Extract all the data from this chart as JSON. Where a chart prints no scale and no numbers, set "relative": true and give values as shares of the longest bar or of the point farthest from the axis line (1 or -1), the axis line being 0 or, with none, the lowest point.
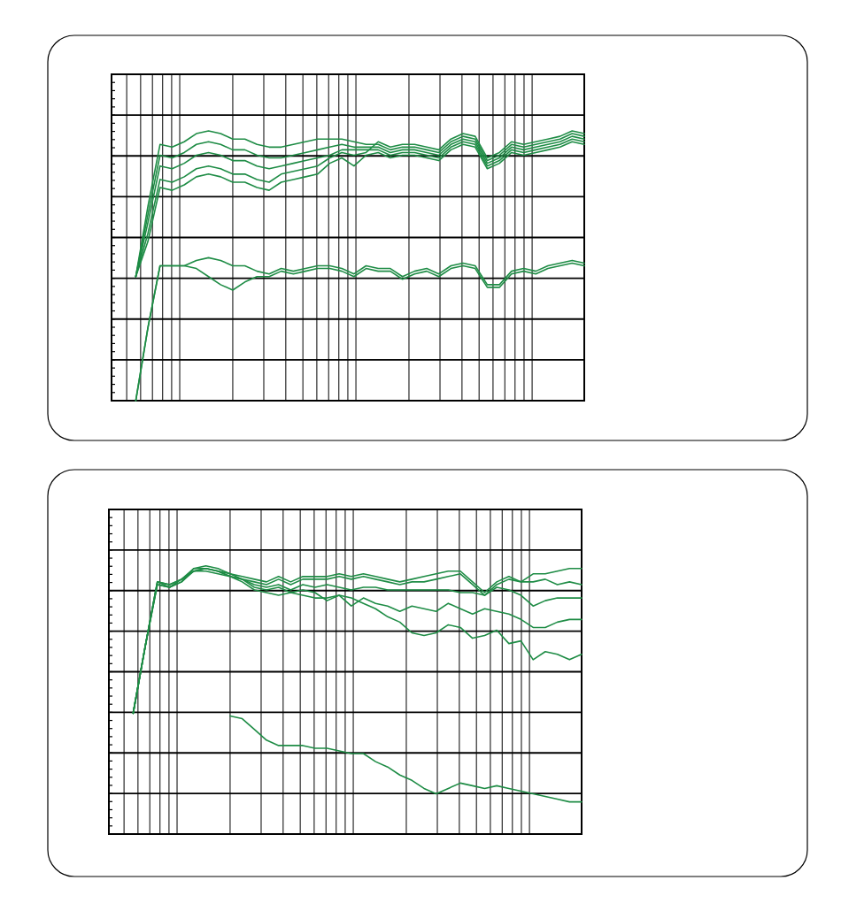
{
  "chart_data": [
    {
      "type": "line",
      "relative": true,
      "grid": true,
      "categories": [
        null,
        null,
        null,
        null,
        null,
        null,
        null,
        null,
        null,
        null,
        null,
        null,
        null,
        null,
        null,
        null,
        null,
        null,
        null,
        null,
        null,
        null,
        null,
        null,
        null,
        null,
        null,
        null,
        null,
        null,
        null,
        null,
        null,
        null,
        null,
        null,
        null,
        null,
        null,
        null
      ],
      "series": [
        {
          "color": "#1e8c45",
          "values": [
            null,
            null,
            0.46,
            0.72,
            0.95,
            0.94,
            0.96,
            0.99,
            1,
            0.99,
            0.97,
            0.97,
            0.95,
            0.94,
            0.94,
            0.95,
            0.96,
            0.97,
            0.97,
            0.97,
            0.96,
            0.95,
            0.95,
            0.93,
            0.94,
            0.94,
            0.93,
            0.92,
            0.96,
            0.98,
            0.97,
            0.89,
            0.91,
            0.95,
            0.94,
            0.95,
            0.96,
            0.97,
            0.99,
            0.98
          ]
        },
        {
          "color": "#1e8c45",
          "values": [
            null,
            null,
            0.46,
            0.69,
            0.91,
            0.9,
            0.92,
            0.95,
            0.96,
            0.95,
            0.93,
            0.93,
            0.91,
            0.9,
            0.9,
            0.91,
            0.92,
            0.93,
            0.94,
            0.95,
            0.94,
            0.94,
            0.94,
            0.92,
            0.93,
            0.93,
            0.92,
            0.91,
            0.95,
            0.97,
            0.96,
            0.88,
            0.9,
            0.94,
            0.93,
            0.94,
            0.95,
            0.96,
            0.98,
            0.97
          ]
        },
        {
          "color": "#1e8c45",
          "values": [
            null,
            null,
            0.46,
            0.66,
            0.87,
            0.86,
            0.88,
            0.91,
            0.92,
            0.91,
            0.89,
            0.89,
            0.87,
            0.86,
            0.87,
            0.88,
            0.89,
            0.9,
            0.91,
            0.93,
            0.93,
            0.93,
            0.93,
            0.91,
            0.92,
            0.92,
            0.91,
            0.9,
            0.94,
            0.96,
            0.95,
            0.87,
            0.89,
            0.93,
            0.92,
            0.93,
            0.94,
            0.95,
            0.97,
            0.96
          ]
        },
        {
          "color": "#1e8c45",
          "values": [
            null,
            null,
            0.46,
            0.62,
            0.82,
            0.81,
            0.83,
            0.86,
            0.87,
            0.86,
            0.84,
            0.84,
            0.82,
            0.81,
            0.84,
            0.85,
            0.86,
            0.87,
            0.9,
            0.92,
            0.91,
            0.92,
            0.96,
            0.94,
            0.95,
            0.95,
            0.94,
            0.93,
            0.97,
            0.99,
            0.98,
            0.9,
            0.92,
            0.96,
            0.95,
            0.96,
            0.97,
            0.98,
            1,
            0.99
          ]
        },
        {
          "color": "#1e8c45",
          "values": [
            null,
            null,
            0.46,
            0.59,
            0.79,
            0.78,
            0.8,
            0.83,
            0.84,
            0.83,
            0.81,
            0.81,
            0.79,
            0.78,
            0.81,
            0.82,
            0.83,
            0.84,
            0.88,
            0.9,
            0.87,
            0.91,
            0.92,
            0.9,
            0.91,
            0.91,
            0.9,
            0.89,
            0.93,
            0.95,
            0.94,
            0.86,
            0.88,
            0.92,
            0.91,
            0.92,
            0.93,
            0.94,
            0.96,
            0.95
          ]
        },
        {
          "color": "#1e8c45",
          "values": [
            null,
            null,
            0,
            0.27,
            0.5,
            0.5,
            0.5,
            0.52,
            0.53,
            0.52,
            0.5,
            0.5,
            0.48,
            0.47,
            0.49,
            0.48,
            0.49,
            0.5,
            0.5,
            0.49,
            0.47,
            0.5,
            0.49,
            0.49,
            0.46,
            0.48,
            0.49,
            0.47,
            0.5,
            0.51,
            0.5,
            0.43,
            0.43,
            0.48,
            0.49,
            0.48,
            0.5,
            0.51,
            0.52,
            0.51
          ]
        },
        {
          "color": "#1e8c45",
          "values": [
            null,
            null,
            0,
            0.27,
            0.5,
            0.5,
            0.5,
            0.49,
            0.46,
            0.43,
            0.41,
            0.44,
            0.46,
            0.46,
            0.48,
            0.47,
            0.48,
            0.49,
            0.49,
            0.48,
            0.46,
            0.49,
            0.48,
            0.48,
            0.45,
            0.47,
            0.48,
            0.46,
            0.49,
            0.5,
            0.49,
            0.42,
            0.42,
            0.47,
            0.48,
            0.47,
            0.49,
            0.5,
            0.51,
            0.5
          ]
        }
      ]
    },
    {
      "type": "line",
      "relative": true,
      "grid": true,
      "categories": [
        null,
        null,
        null,
        null,
        null,
        null,
        null,
        null,
        null,
        null,
        null,
        null,
        null,
        null,
        null,
        null,
        null,
        null,
        null,
        null,
        null,
        null,
        null,
        null,
        null,
        null,
        null,
        null,
        null,
        null,
        null,
        null,
        null,
        null,
        null,
        null,
        null,
        null,
        null,
        null
      ],
      "series": [
        {
          "color": "#1e8c45",
          "values": [
            null,
            null,
            0.45,
            0.7,
            0.94,
            0.93,
            0.95,
            0.99,
            1,
            0.99,
            0.97,
            0.96,
            0.95,
            0.94,
            0.96,
            0.94,
            0.96,
            0.96,
            0.96,
            0.97,
            0.96,
            0.97,
            0.96,
            0.95,
            0.94,
            0.95,
            0.96,
            0.97,
            0.98,
            0.98,
            0.94,
            0.9,
            0.94,
            0.96,
            0.94,
            0.97,
            0.97,
            0.98,
            0.99,
            0.99
          ]
        },
        {
          "color": "#1e8c45",
          "values": [
            null,
            null,
            0.45,
            0.7,
            0.94,
            0.92,
            0.94,
            0.98,
            0.99,
            0.98,
            0.97,
            0.95,
            0.94,
            0.93,
            0.95,
            0.93,
            0.95,
            0.95,
            0.95,
            0.96,
            0.95,
            0.96,
            0.95,
            0.94,
            0.93,
            0.94,
            0.94,
            0.95,
            0.96,
            0.97,
            0.93,
            0.89,
            0.93,
            0.95,
            0.94,
            0.94,
            0.95,
            0.93,
            0.94,
            0.93
          ]
        },
        {
          "color": "#1e8c45",
          "values": [
            null,
            null,
            0.45,
            0.7,
            0.93,
            0.92,
            0.94,
            0.99,
            0.99,
            0.98,
            0.96,
            0.95,
            0.93,
            0.92,
            0.93,
            0.91,
            0.93,
            0.92,
            0.93,
            0.92,
            0.91,
            0.92,
            0.92,
            0.91,
            0.91,
            0.91,
            0.91,
            0.91,
            0.91,
            0.9,
            0.9,
            0.89,
            0.92,
            0.91,
            0.89,
            0.85,
            0.87,
            0.88,
            0.88,
            0.88
          ]
        },
        {
          "color": "#1e8c45",
          "values": [
            null,
            null,
            0.45,
            0.7,
            0.94,
            0.93,
            0.95,
            0.98,
            0.98,
            0.97,
            0.96,
            0.95,
            0.92,
            0.91,
            0.92,
            0.9,
            0.91,
            0.9,
            0.87,
            0.89,
            0.85,
            0.88,
            0.86,
            0.85,
            0.83,
            0.85,
            0.84,
            0.83,
            0.86,
            0.84,
            0.82,
            0.84,
            0.83,
            0.82,
            0.8,
            0.77,
            0.77,
            0.79,
            0.8,
            0.8
          ]
        },
        {
          "color": "#1e8c45",
          "values": [
            null,
            null,
            0.45,
            0.7,
            0.93,
            0.92,
            0.95,
            0.98,
            0.99,
            0.98,
            0.96,
            0.94,
            0.91,
            0.9,
            0.89,
            0.9,
            0.89,
            0.88,
            0.88,
            0.89,
            0.88,
            0.86,
            0.84,
            0.81,
            0.79,
            0.75,
            0.74,
            0.75,
            0.78,
            0.77,
            0.73,
            0.74,
            0.76,
            0.71,
            0.72,
            0.65,
            0.68,
            0.67,
            0.65,
            0.67
          ]
        },
        {
          "color": "#1e8c45",
          "values": [
            null,
            null,
            null,
            null,
            null,
            null,
            null,
            null,
            null,
            null,
            0.44,
            0.43,
            0.39,
            0.35,
            0.33,
            0.33,
            0.33,
            0.32,
            0.32,
            0.31,
            0.3,
            0.3,
            0.27,
            0.25,
            0.22,
            0.2,
            0.17,
            0.15,
            0.17,
            0.19,
            0.18,
            0.17,
            0.18,
            0.17,
            0.16,
            0.15,
            0.14,
            0.13,
            0.12,
            0.12
          ]
        }
      ]
    }
  ]
}
